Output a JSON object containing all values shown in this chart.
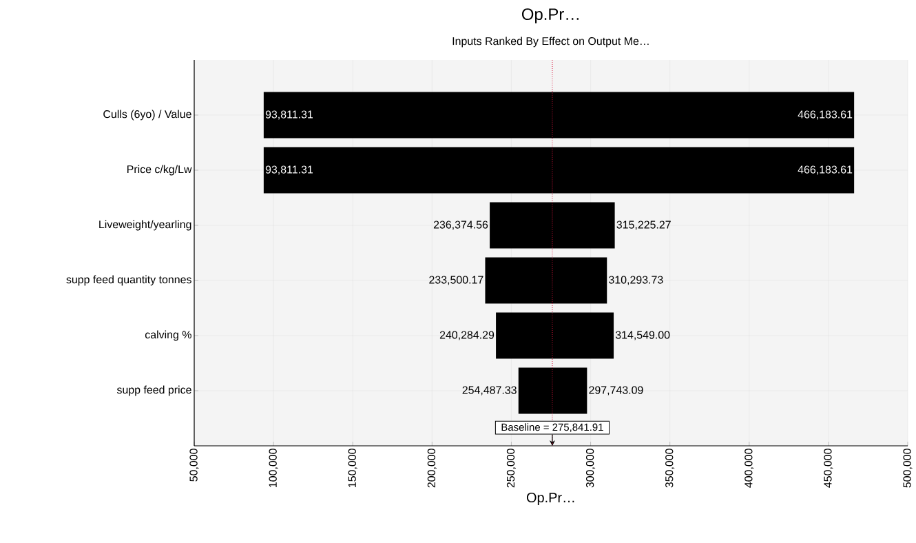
{
  "chart_data": {
    "type": "bar",
    "orientation": "horizontal",
    "title": "Op.Pr…",
    "subtitle": "Inputs Ranked By Effect on Output Me…",
    "xlabel": "Op.Pr…",
    "categories": [
      "Culls (6yo) / Value",
      "Price c/kg/Lw",
      "Liveweight/yearling",
      "supp feed quantity tonnes",
      "calving %",
      "supp feed price"
    ],
    "base": [
      93811.31,
      93811.31,
      236374.56,
      233500.17,
      240284.29,
      254487.33
    ],
    "values": [
      372372.3,
      372372.3,
      78850.71,
      76793.56,
      74264.71,
      43255.76
    ],
    "color": "#000000",
    "xlim": [
      50000,
      500000
    ],
    "xticks": [
      {
        "value": 50000,
        "label": "50,000"
      },
      {
        "value": 100000,
        "label": "100,000"
      },
      {
        "value": 150000,
        "label": "150,000"
      },
      {
        "value": 200000,
        "label": "200,000"
      },
      {
        "value": 250000,
        "label": "250,000"
      },
      {
        "value": 300000,
        "label": "300,000"
      },
      {
        "value": 350000,
        "label": "350,000"
      },
      {
        "value": 400000,
        "label": "400,000"
      },
      {
        "value": 450000,
        "label": "450,000"
      },
      {
        "value": 500000,
        "label": "500,000"
      }
    ],
    "grid": true,
    "ref_lines": [
      {
        "axis": "x",
        "value": 275841.91,
        "label": "Baseline = 275,841.91",
        "color": "#dc143c",
        "line_style": "dotted"
      }
    ],
    "annotations": [
      {
        "text": "93,811.31",
        "x": 93811.31,
        "y": "Culls (6yo) / Value"
      },
      {
        "text": "466,183.61",
        "x": 466183.61,
        "y": "Culls (6yo) / Value"
      },
      {
        "text": "93,811.31",
        "x": 93811.31,
        "y": "Price c/kg/Lw"
      },
      {
        "text": "466,183.61",
        "x": 466183.61,
        "y": "Price c/kg/Lw"
      },
      {
        "text": "236,374.56",
        "x": 236374.56,
        "y": "Liveweight/yearling"
      },
      {
        "text": "315,225.27",
        "x": 315225.27,
        "y": "Liveweight/yearling"
      },
      {
        "text": "233,500.17",
        "x": 233500.17,
        "y": "supp feed quantity tonnes"
      },
      {
        "text": "310,293.73",
        "x": 310293.73,
        "y": "supp feed quantity tonnes"
      },
      {
        "text": "240,284.29",
        "x": 240284.29,
        "y": "calving %"
      },
      {
        "text": "314,549.00",
        "x": 314549.0,
        "y": "calving %"
      },
      {
        "text": "254,487.33",
        "x": 254487.33,
        "y": "supp feed price"
      },
      {
        "text": "297,743.09",
        "x": 297743.09,
        "y": "supp feed price"
      }
    ]
  }
}
